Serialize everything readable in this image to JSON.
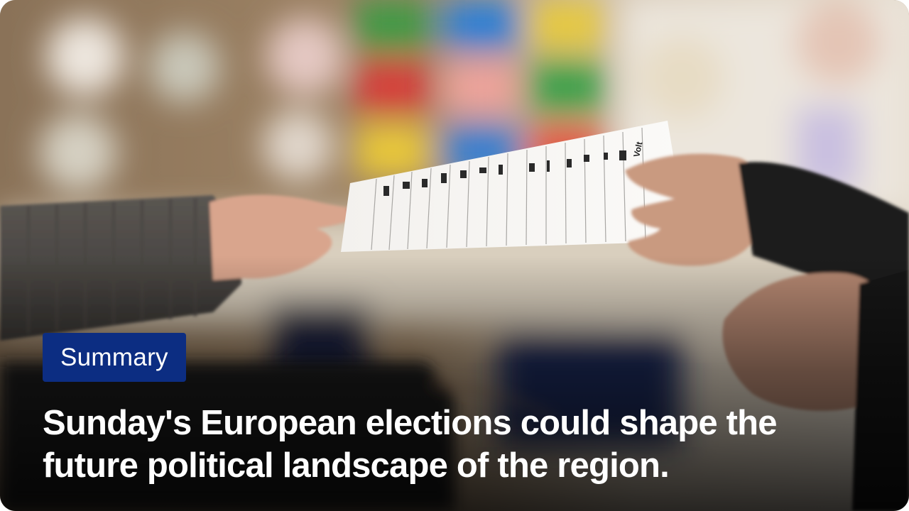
{
  "card": {
    "badge_label": "Summary",
    "headline": "Sunday's European elections could shape the future political landscape of the region."
  },
  "colors": {
    "badge_background": "#0c2d82",
    "headline_text": "#ffffff",
    "badge_text": "#ffffff"
  },
  "photo": {
    "ballot_party_labels": [
      "Volt"
    ]
  }
}
